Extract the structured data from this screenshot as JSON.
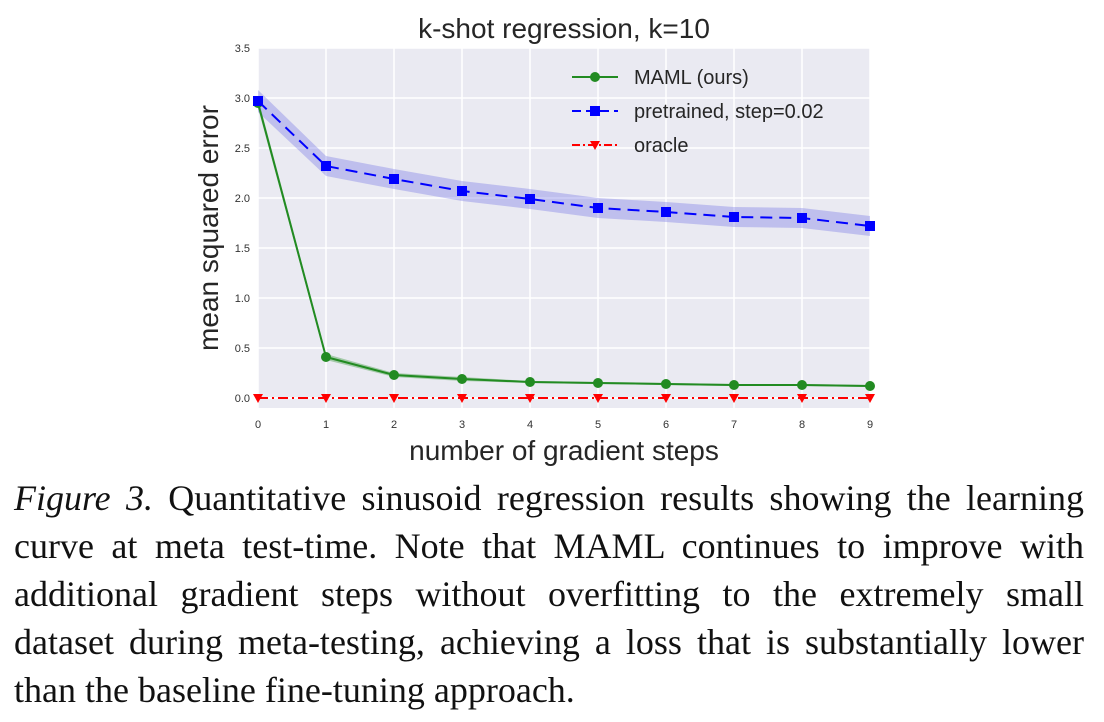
{
  "chart_data": {
    "type": "line",
    "title": "k-shot regression, k=10",
    "xlabel": "number of gradient steps",
    "ylabel": "mean squared error",
    "xlim": [
      0,
      9
    ],
    "ylim": [
      -0.1,
      3.5
    ],
    "x_ticks": [
      "0",
      "1",
      "2",
      "3",
      "4",
      "5",
      "6",
      "7",
      "8",
      "9"
    ],
    "y_ticks": [
      "0.0",
      "0.5",
      "1.0",
      "1.5",
      "2.0",
      "2.5",
      "3.0",
      "3.5"
    ],
    "grid": true,
    "legend_position": "top-right",
    "x": [
      0,
      1,
      2,
      3,
      4,
      5,
      6,
      7,
      8,
      9
    ],
    "series": [
      {
        "name": "MAML (ours)",
        "values": [
          2.95,
          0.41,
          0.23,
          0.19,
          0.16,
          0.15,
          0.14,
          0.13,
          0.13,
          0.12
        ],
        "band": [
          [
            2.9,
            3.0
          ],
          [
            0.38,
            0.44
          ],
          [
            0.21,
            0.25
          ],
          [
            0.17,
            0.21
          ],
          [
            0.15,
            0.17
          ],
          [
            0.14,
            0.16
          ],
          [
            0.13,
            0.15
          ],
          [
            0.12,
            0.14
          ],
          [
            0.12,
            0.14
          ],
          [
            0.11,
            0.13
          ]
        ],
        "color": "#228b22",
        "line_style": "solid",
        "marker": "circle"
      },
      {
        "name": "pretrained, step=0.02",
        "values": [
          2.97,
          2.32,
          2.19,
          2.07,
          1.99,
          1.9,
          1.86,
          1.81,
          1.8,
          1.72
        ],
        "band": [
          [
            2.86,
            3.08
          ],
          [
            2.22,
            2.42
          ],
          [
            2.09,
            2.29
          ],
          [
            1.97,
            2.17
          ],
          [
            1.89,
            2.09
          ],
          [
            1.8,
            2.0
          ],
          [
            1.76,
            1.96
          ],
          [
            1.71,
            1.91
          ],
          [
            1.7,
            1.9
          ],
          [
            1.62,
            1.82
          ]
        ],
        "color": "#0000ff",
        "band_color": "#6f6fe6",
        "line_style": "dashed",
        "marker": "square"
      },
      {
        "name": "oracle",
        "values": [
          0,
          0,
          0,
          0,
          0,
          0,
          0,
          0,
          0,
          0
        ],
        "color": "#ff0000",
        "line_style": "dashdot",
        "marker": "triangle-down"
      }
    ]
  },
  "caption": {
    "label": "Figure 3.",
    "text": "Quantitative sinusoid regression results showing the learning curve at meta test-time. Note that MAML continues to improve with additional gradient steps without overfitting to the extremely small dataset during meta-testing, achieving a loss that is substantially lower than the baseline fine-tuning approach."
  },
  "colors": {
    "plot_background": "#eaeaf2",
    "grid": "#ffffff"
  }
}
